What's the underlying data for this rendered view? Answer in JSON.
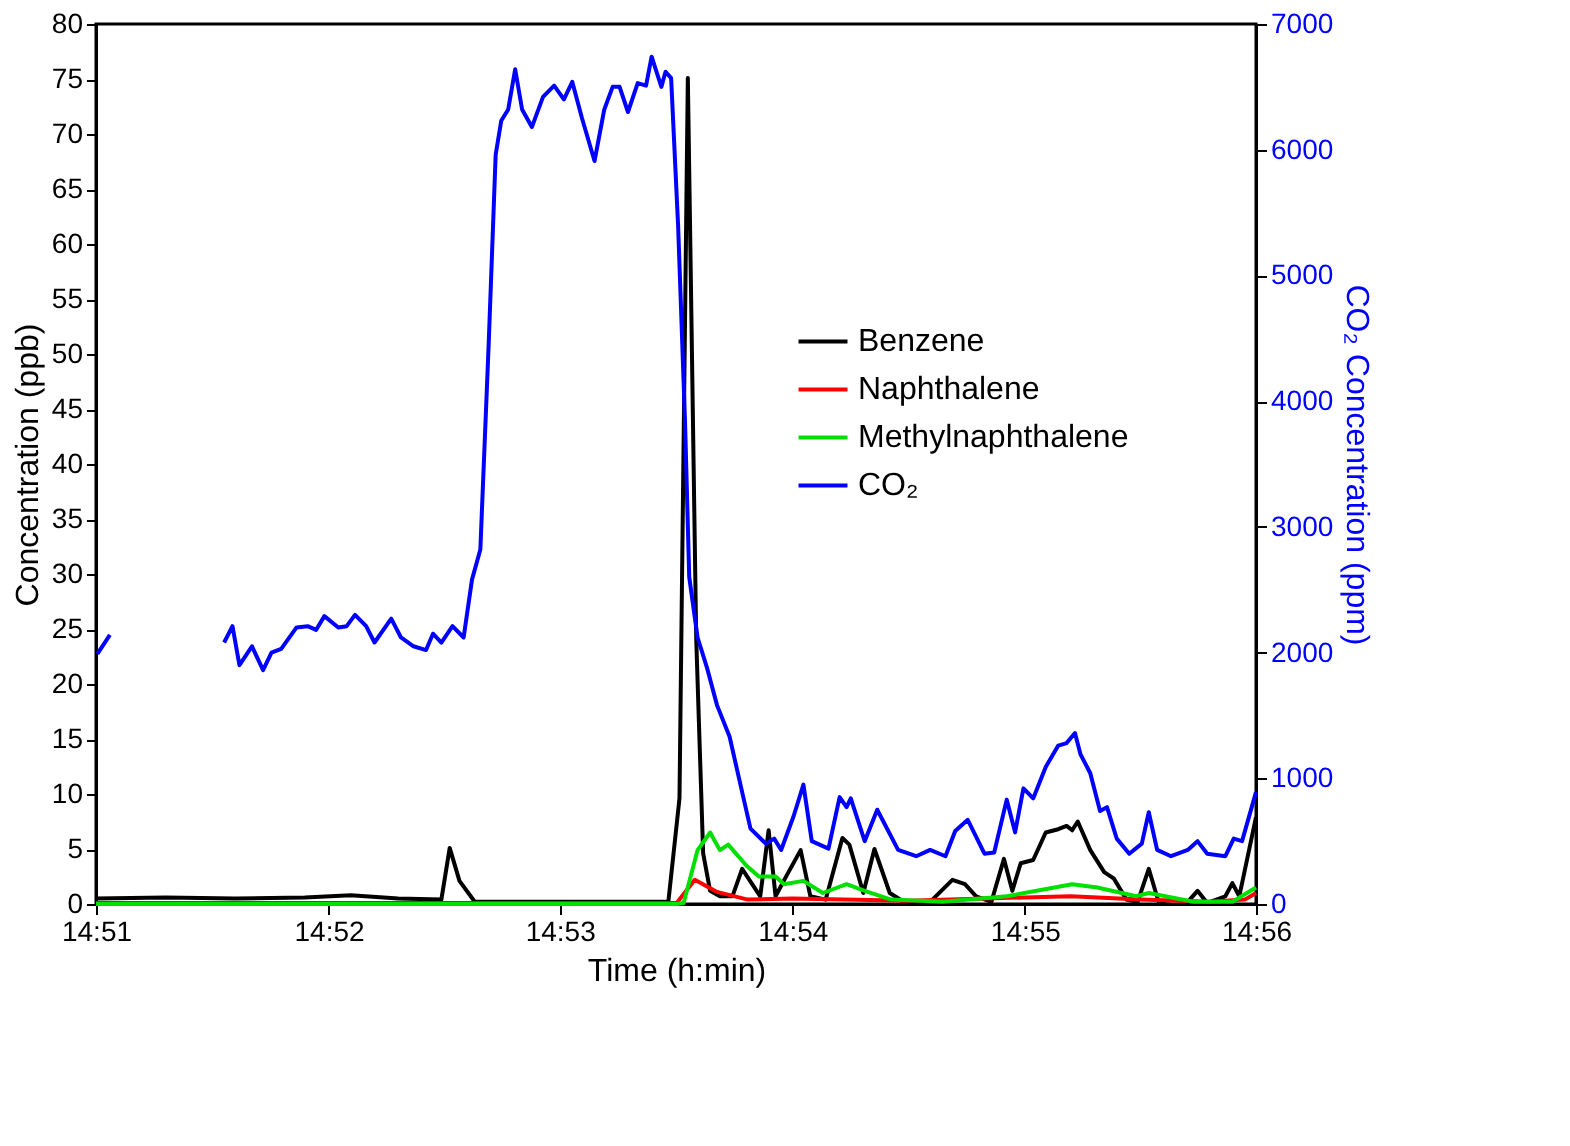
{
  "chart_data": {
    "type": "line",
    "xlabel": "Time (h:min)",
    "ylabel": "Concentration (ppb)",
    "y2label": "CO₂ Concentration (ppm)",
    "xlim": [
      14.85,
      14.9333
    ],
    "xticks": [
      {
        "value": 14.85,
        "label": "14:51"
      },
      {
        "value": 14.8667,
        "label": "14:52"
      },
      {
        "value": 14.8833,
        "label": "14:53"
      },
      {
        "value": 14.9,
        "label": "14:54"
      },
      {
        "value": 14.9167,
        "label": "14:55"
      },
      {
        "value": 14.9333,
        "label": "14:56"
      }
    ],
    "ylim": [
      0,
      80
    ],
    "yticks": [
      0,
      5,
      10,
      15,
      20,
      25,
      30,
      35,
      40,
      45,
      50,
      55,
      60,
      65,
      70,
      75,
      80
    ],
    "y2lim": [
      0,
      7000
    ],
    "y2ticks": [
      0,
      1000,
      2000,
      3000,
      4000,
      5000,
      6000,
      7000
    ],
    "legend": "right",
    "grid": false,
    "marker": "none",
    "line_style": "solid",
    "series": [
      {
        "name": "Benzene",
        "color": "#000000",
        "x": [
          14.85,
          14.855,
          14.86,
          14.865,
          14.8683,
          14.8717,
          14.8748,
          14.8754,
          14.8761,
          14.8772,
          14.8911,
          14.8919,
          14.8925,
          14.8931,
          14.8936,
          14.8941,
          14.8948,
          14.8957,
          14.8964,
          14.8977,
          14.8983,
          14.8988,
          14.8996,
          14.9006,
          14.9013,
          14.9024,
          14.9036,
          14.9041,
          14.9051,
          14.9059,
          14.907,
          14.908,
          14.9099,
          14.9115,
          14.9124,
          14.9132,
          14.9143,
          14.9152,
          14.9158,
          14.9164,
          14.9173,
          14.9182,
          14.9191,
          14.9197,
          14.9201,
          14.9205,
          14.9214,
          14.9224,
          14.9231,
          14.924,
          14.9248,
          14.9256,
          14.9263,
          14.9275,
          14.9284,
          14.9291,
          14.9298,
          14.9311,
          14.9316,
          14.9321,
          14.9333
        ],
        "values": [
          0.5,
          0.6,
          0.5,
          0.6,
          0.8,
          0.5,
          0.4,
          5.1,
          2.1,
          0.2,
          0.2,
          9.6,
          75.1,
          24.2,
          4.6,
          1.2,
          0.7,
          0.7,
          3.2,
          0.7,
          6.7,
          0.7,
          2.6,
          4.9,
          0.7,
          0.4,
          6.0,
          5.4,
          1.0,
          5.0,
          1.0,
          0.2,
          0.2,
          2.2,
          1.8,
          0.7,
          0.2,
          4.1,
          1.2,
          3.7,
          4.0,
          6.5,
          6.8,
          7.1,
          6.7,
          7.5,
          4.9,
          2.9,
          2.3,
          0.4,
          0.2,
          3.2,
          0.2,
          0.4,
          0.2,
          1.2,
          0.1,
          0.7,
          1.9,
          0.7,
          7.9
        ]
      },
      {
        "name": "Naphthalene",
        "color": "#ff0000",
        "x": [
          14.85,
          14.8833,
          14.8917,
          14.893,
          14.8946,
          14.8968,
          14.9,
          14.9083,
          14.9167,
          14.92,
          14.925,
          14.93,
          14.9325,
          14.9333
        ],
        "values": [
          0.1,
          0.1,
          0.1,
          2.2,
          1.1,
          0.4,
          0.5,
          0.3,
          0.6,
          0.7,
          0.4,
          0.2,
          0.4,
          1.0
        ]
      },
      {
        "name": "Methylnaphthalene",
        "color": "#00e000",
        "x": [
          14.85,
          14.8917,
          14.8922,
          14.8932,
          14.8941,
          14.8948,
          14.8954,
          14.8967,
          14.8976,
          14.8988,
          14.8994,
          14.9008,
          14.9022,
          14.9039,
          14.9052,
          14.9071,
          14.9108,
          14.9154,
          14.9201,
          14.9219,
          14.9247,
          14.9256,
          14.9288,
          14.9316,
          14.9333
        ],
        "values": [
          0,
          0,
          0.1,
          4.9,
          6.5,
          4.9,
          5.4,
          3.5,
          2.5,
          2.5,
          1.8,
          2.1,
          1.0,
          1.8,
          1.2,
          0.4,
          0.2,
          0.7,
          1.8,
          1.5,
          0.7,
          1.0,
          0.2,
          0.2,
          1.5
        ]
      },
      {
        "name": "CO₂",
        "color": "#0000ff",
        "axis": "y2",
        "x": [
          14.8501,
          14.851,
          14.855,
          14.8592,
          14.8598,
          14.8603,
          14.8612,
          14.862,
          14.8626,
          14.8633,
          14.8644,
          14.8652,
          14.8658,
          14.8664,
          14.8674,
          14.868,
          14.8686,
          14.8694,
          14.87,
          14.8712,
          14.8719,
          14.8728,
          14.8737,
          14.8742,
          14.8748,
          14.8756,
          14.8764,
          14.877,
          14.8776,
          14.8782,
          14.8787,
          14.8791,
          14.8796,
          14.8801,
          14.8806,
          14.8813,
          14.8821,
          14.8829,
          14.8836,
          14.8842,
          14.8849,
          14.8858,
          14.8865,
          14.8871,
          14.8876,
          14.8882,
          14.8889,
          14.8895,
          14.8899,
          14.8906,
          14.8909,
          14.8913,
          14.8918,
          14.8923,
          14.8926,
          14.8932,
          14.8939,
          14.8946,
          14.8955,
          14.8964,
          14.897,
          14.8981,
          14.8987,
          14.8992,
          14.9001,
          14.9008,
          14.9014,
          14.9026,
          14.9034,
          14.9039,
          14.9042,
          14.9052,
          14.9061,
          14.9076,
          14.9089,
          14.9099,
          14.911,
          14.9117,
          14.9126,
          14.9138,
          14.9145,
          14.9154,
          14.916,
          14.9166,
          14.9173,
          14.9182,
          14.9191,
          14.9197,
          14.9203,
          14.9207,
          14.9214,
          14.9221,
          14.9226,
          14.9233,
          14.9242,
          14.9251,
          14.9256,
          14.9262,
          14.9272,
          14.9284,
          14.9291,
          14.9298,
          14.9311,
          14.9317,
          14.9323,
          14.9333
        ],
        "values": [
          1990,
          2140,
          null,
          2080,
          2210,
          1900,
          2050,
          1860,
          2000,
          2030,
          2200,
          2210,
          2180,
          2290,
          2200,
          2210,
          2300,
          2210,
          2080,
          2270,
          2120,
          2050,
          2020,
          2150,
          2080,
          2210,
          2120,
          2580,
          2820,
          4460,
          5960,
          6230,
          6320,
          6640,
          6320,
          6180,
          6420,
          6510,
          6400,
          6540,
          6250,
          5910,
          6320,
          6500,
          6500,
          6300,
          6530,
          6510,
          6740,
          6500,
          6620,
          6570,
          5400,
          3830,
          2600,
          2120,
          1870,
          1580,
          1330,
          890,
          600,
          480,
          520,
          430,
          700,
          950,
          500,
          440,
          850,
          770,
          840,
          500,
          750,
          430,
          380,
          430,
          380,
          580,
          670,
          400,
          410,
          830,
          570,
          920,
          840,
          1090,
          1260,
          1280,
          1360,
          1190,
          1040,
          740,
          770,
          520,
          400,
          480,
          730,
          430,
          380,
          430,
          500,
          400,
          380,
          520,
          500,
          890
        ]
      }
    ]
  }
}
